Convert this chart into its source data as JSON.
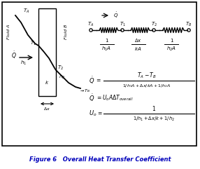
{
  "title": "Figure 6   Overall Heat Transfer Coefficient",
  "title_color": "#0000bb",
  "bg_color": "#ffffff",
  "border_color": "#000000",
  "text_color": "#000000",
  "fig_width": 2.86,
  "fig_height": 2.41,
  "dpi": 100
}
